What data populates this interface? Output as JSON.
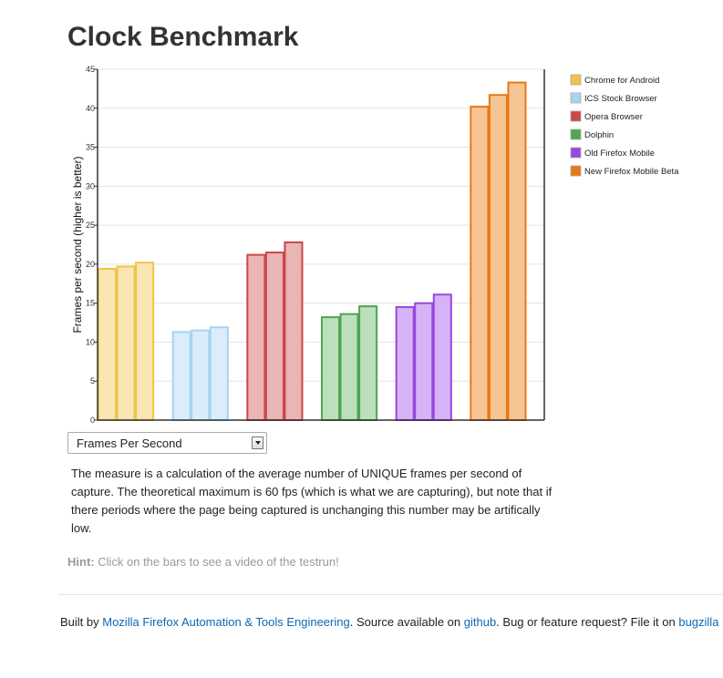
{
  "page": {
    "title": "Clock Benchmark"
  },
  "metric_select": {
    "selected": "Frames Per Second"
  },
  "description": "The measure is a calculation of the average number of UNIQUE frames per second of capture. The theoretical maximum is 60 fps (which is what we are capturing), but note that if there periods where the page being captured is unchanging this number may be artifically low.",
  "hint": {
    "label": "Hint:",
    "text": " Click on the bars to see a video of the testrun!"
  },
  "footer": {
    "prefix": "Built by ",
    "team_link": "Mozilla Firefox Automation & Tools Engineering",
    "middle": ". Source available on ",
    "github_link": "github",
    "suffix": ". Bug or feature request? File it on ",
    "bugzilla_link": "bugzilla"
  },
  "chart_data": {
    "type": "bar",
    "title": "",
    "xlabel": "",
    "ylabel": "Frames per second (higher is better)",
    "ylim": [
      0,
      45
    ],
    "yticks": [
      0,
      5,
      10,
      15,
      20,
      25,
      30,
      35,
      40,
      45
    ],
    "grid": true,
    "legend_position": "right",
    "series": [
      {
        "name": "Chrome for Android",
        "color": "#f0c348",
        "fill": "#f9e6b3",
        "values": [
          19.4,
          19.7,
          20.2
        ]
      },
      {
        "name": "ICS Stock Browser",
        "color": "#a7d3f2",
        "fill": "#dbedfb",
        "values": [
          11.3,
          11.5,
          11.9
        ]
      },
      {
        "name": "Opera Browser",
        "color": "#cc4747",
        "fill": "#e9b5b5",
        "values": [
          21.2,
          21.5,
          22.8
        ]
      },
      {
        "name": "Dolphin",
        "color": "#4ea64e",
        "fill": "#bcdfbc",
        "values": [
          13.2,
          13.6,
          14.6
        ]
      },
      {
        "name": "Old Firefox Mobile",
        "color": "#9a47e0",
        "fill": "#d6b3f7",
        "values": [
          14.5,
          15.0,
          16.1
        ]
      },
      {
        "name": "New Firefox Mobile Beta",
        "color": "#e87816",
        "fill": "#f7c594",
        "values": [
          40.2,
          41.7,
          43.3
        ]
      }
    ]
  }
}
